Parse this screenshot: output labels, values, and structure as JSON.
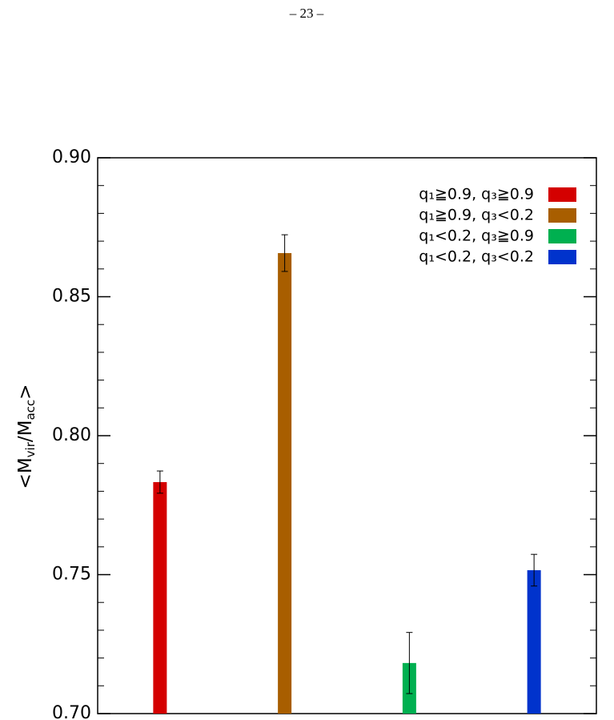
{
  "page_number": "– 23 –",
  "chart_data": {
    "type": "bar",
    "y_label": [
      "<M",
      "vir",
      "/M",
      "acc",
      ">"
    ],
    "ylim": [
      0.7,
      0.9
    ],
    "yticks": [
      {
        "value": 0.7,
        "label": "0.70"
      },
      0.75,
      {
        "value": 0.8,
        "label": "0.80"
      },
      0.85,
      {
        "value": 0.9,
        "label": "0.90"
      }
    ],
    "legend": "upper right",
    "series": [
      {
        "name": "q₁≧0.9, q₃≧0.9",
        "color": "#d40000",
        "values": [
          0.7833
        ],
        "errors": [
          0.004
        ]
      },
      {
        "name": "q₁≧0.9, q₃<0.2",
        "color": "#a85e00",
        "values": [
          0.8657
        ],
        "errors": [
          0.0066
        ]
      },
      {
        "name": "q₁<0.2, q₃≧0.9",
        "color": "#00b050",
        "values": [
          0.7182
        ],
        "errors": [
          0.011
        ]
      },
      {
        "name": "q₁<0.2, q₃<0.2",
        "color": "#0033cc",
        "values": [
          0.7516
        ],
        "errors": [
          0.0057
        ]
      }
    ]
  }
}
